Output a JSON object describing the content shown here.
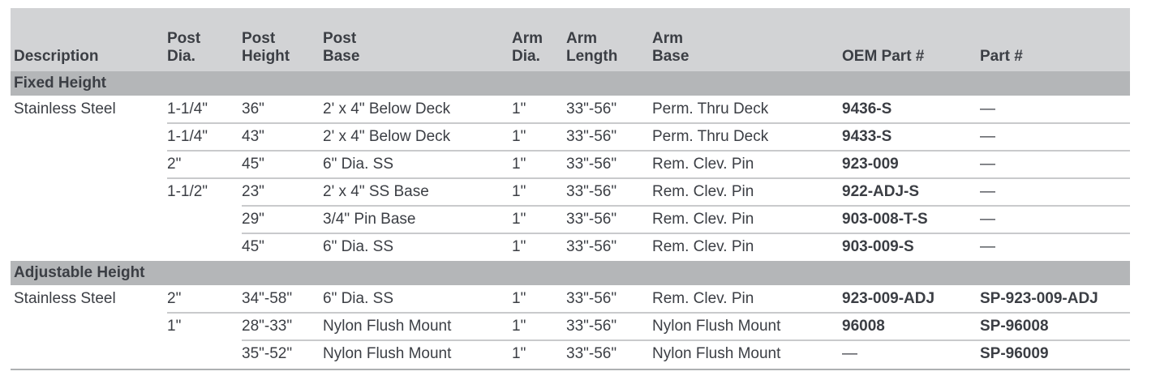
{
  "colors": {
    "header_bg": "#d2d3d5",
    "section_bg": "#b4b6b8",
    "text": "#3b3e44",
    "row_line": "#c9cacc",
    "bottom_line": "#aeb0b2"
  },
  "table": {
    "columns": [
      {
        "top": "",
        "bottom": "Description"
      },
      {
        "top": "Post",
        "bottom": "Dia."
      },
      {
        "top": "Post",
        "bottom": "Height"
      },
      {
        "top": "Post",
        "bottom": "Base"
      },
      {
        "top": "Arm",
        "bottom": "Dia."
      },
      {
        "top": "Arm",
        "bottom": "Length"
      },
      {
        "top": "Arm",
        "bottom": "Base"
      },
      {
        "top": "",
        "bottom": "OEM Part #"
      },
      {
        "top": "",
        "bottom": "Part #"
      }
    ],
    "bold_columns": [
      7,
      8
    ],
    "dash": "—",
    "sections": [
      {
        "title": "Fixed Height",
        "rows": [
          {
            "sep": "none",
            "cells": [
              "Stainless Steel",
              "1-1/4\"",
              "36\"",
              "2' x 4\" Below Deck",
              "1\"",
              "33\"-56\"",
              "Perm. Thru Deck",
              "9436-S",
              "—"
            ]
          },
          {
            "sep": "col2",
            "cells": [
              "",
              "1-1/4\"",
              "43\"",
              "2' x 4\" Below Deck",
              "1\"",
              "33\"-56\"",
              "Perm. Thru Deck",
              "9433-S",
              "—"
            ]
          },
          {
            "sep": "col2",
            "cells": [
              "",
              "2\"",
              "45\"",
              "6\" Dia. SS",
              "1\"",
              "33\"-56\"",
              "Rem. Clev. Pin",
              "923-009",
              "—"
            ]
          },
          {
            "sep": "col2",
            "cells": [
              "",
              "1-1/2\"",
              "23\"",
              "2' x 4\" SS Base",
              "1\"",
              "33\"-56\"",
              "Rem. Clev. Pin",
              "922-ADJ-S",
              "—"
            ]
          },
          {
            "sep": "col3",
            "cells": [
              "",
              "",
              "29\"",
              "3/4\" Pin Base",
              "1\"",
              "33\"-56\"",
              "Rem. Clev. Pin",
              "903-008-T-S",
              "—"
            ]
          },
          {
            "sep": "col3",
            "cells": [
              "",
              "",
              "45\"",
              "6\" Dia. SS",
              "1\"",
              "33\"-56\"",
              "Rem. Clev. Pin",
              "903-009-S",
              "—"
            ]
          }
        ]
      },
      {
        "title": "Adjustable Height",
        "rows": [
          {
            "sep": "none",
            "cells": [
              "Stainless Steel",
              "2\"",
              "34\"-58\"",
              "6\" Dia. SS",
              "1\"",
              "33\"-56\"",
              "Rem. Clev. Pin",
              "923-009-ADJ",
              "SP-923-009-ADJ"
            ]
          },
          {
            "sep": "col2",
            "cells": [
              "",
              "1\"",
              "28\"-33\"",
              "Nylon Flush Mount",
              "1\"",
              "33\"-56\"",
              "Nylon Flush Mount",
              "96008",
              "SP-96008"
            ]
          },
          {
            "sep": "col3",
            "cells": [
              "",
              "",
              "35\"-52\"",
              "Nylon Flush Mount",
              "1\"",
              "33\"-56\"",
              "Nylon Flush Mount",
              "—",
              "SP-96009"
            ]
          }
        ]
      }
    ]
  }
}
